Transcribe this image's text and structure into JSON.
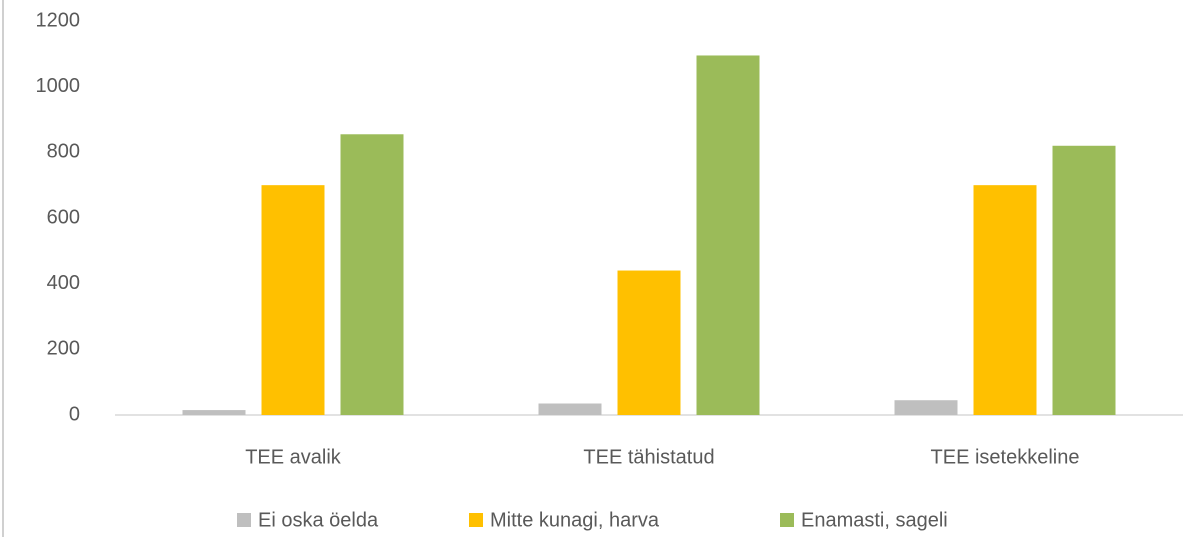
{
  "chart_data": {
    "type": "bar",
    "categories": [
      "TEE avalik",
      "TEE tähistatud",
      "TEE isetekkeline"
    ],
    "series": [
      {
        "name": "Ei oska öelda",
        "color": "#bfbfbf",
        "values": [
          15,
          35,
          45
        ]
      },
      {
        "name": "Mitte kunagi, harva",
        "color": "#ffc000",
        "values": [
          700,
          440,
          700
        ]
      },
      {
        "name": "Enamasti, sageli",
        "color": "#9bbb59",
        "values": [
          855,
          1095,
          820
        ]
      }
    ],
    "ylim": [
      0,
      1200
    ],
    "yticks": [
      0,
      200,
      400,
      600,
      800,
      1000,
      1200
    ],
    "grid": false,
    "legend": "bottom"
  }
}
